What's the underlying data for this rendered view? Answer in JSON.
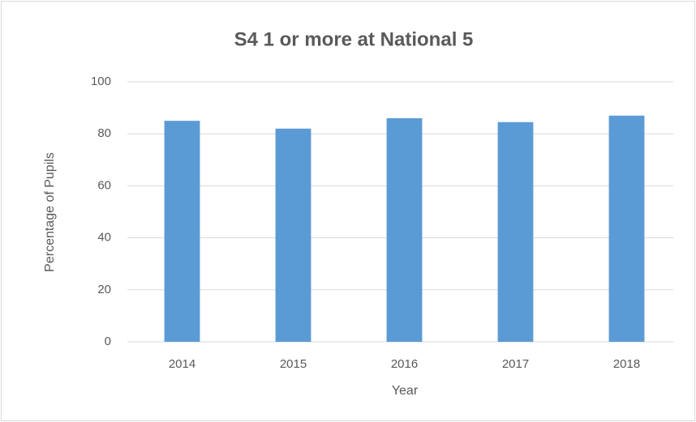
{
  "chart_data": {
    "type": "bar",
    "title": "S4 1 or more at National 5",
    "xlabel": "Year",
    "ylabel": "Percentage of Pupils",
    "categories": [
      "2014",
      "2015",
      "2016",
      "2017",
      "2018"
    ],
    "values": [
      85,
      82,
      86,
      84.5,
      87
    ],
    "color": "#5b9bd5",
    "ylim": [
      0,
      100
    ],
    "yticks": [
      0,
      20,
      40,
      60,
      80,
      100
    ],
    "grid": true
  }
}
